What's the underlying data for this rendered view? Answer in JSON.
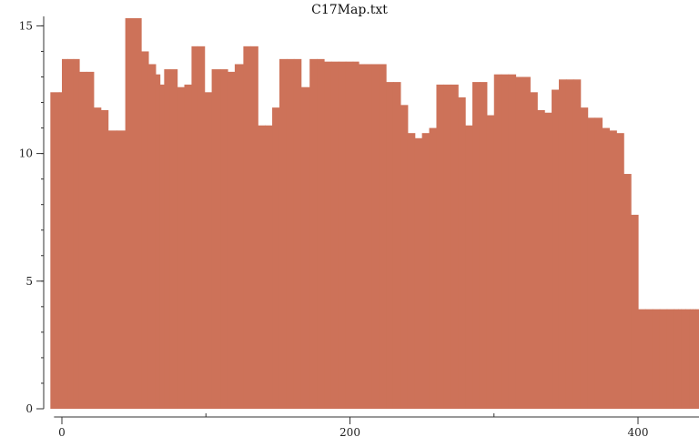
{
  "chart_data": {
    "type": "bar",
    "title": "C17Map.txt",
    "xlabel": "",
    "ylabel": "",
    "xlim": [
      -8,
      442
    ],
    "ylim": [
      0,
      15.3
    ],
    "x_ticks_major": [
      0,
      200,
      400
    ],
    "x_tick_labels": [
      "0",
      "200",
      "400"
    ],
    "x_ticks_minor": [
      100,
      300
    ],
    "y_ticks_major": [
      0,
      5,
      10,
      15
    ],
    "y_tick_labels": [
      "0",
      "5",
      "10",
      "15"
    ],
    "y_ticks_minor_step": 1,
    "grid": false,
    "legend": "none",
    "bar_color": "#cd7259",
    "series": [
      {
        "x": [
          -8,
          -2,
          0,
          4,
          8,
          12,
          17,
          22,
          27,
          32,
          38,
          44,
          50,
          55,
          60,
          65,
          68,
          71,
          75,
          80,
          85,
          90,
          94,
          99,
          104,
          110,
          115,
          120,
          126,
          131,
          136,
          141,
          146,
          151,
          156,
          161,
          166,
          172,
          177,
          182,
          187,
          192,
          197,
          202,
          206,
          210,
          215,
          220,
          225,
          230,
          235,
          240,
          245,
          250,
          255,
          260,
          265,
          270,
          275,
          280,
          285,
          290,
          295,
          300,
          305,
          310,
          315,
          320,
          325,
          330,
          335,
          340,
          345,
          350,
          355,
          360,
          365,
          370,
          375,
          380,
          385,
          390,
          395,
          400,
          405,
          410,
          415,
          420,
          425,
          428,
          430,
          433,
          436,
          438,
          440
        ],
        "widths": [
          6,
          2,
          4,
          4,
          4,
          5,
          5,
          5,
          5,
          6,
          6,
          6,
          5,
          5,
          5,
          3,
          3,
          4,
          5,
          5,
          5,
          4,
          5,
          5,
          6,
          5,
          5,
          6,
          5,
          5,
          5,
          5,
          5,
          5,
          5,
          5,
          6,
          5,
          5,
          5,
          5,
          5,
          5,
          4,
          4,
          5,
          5,
          5,
          5,
          5,
          5,
          5,
          5,
          5,
          5,
          5,
          5,
          5,
          5,
          5,
          5,
          5,
          5,
          5,
          5,
          5,
          5,
          5,
          5,
          5,
          5,
          5,
          5,
          5,
          5,
          5,
          5,
          5,
          5,
          5,
          5,
          5,
          5,
          5,
          5,
          5,
          5,
          5,
          3,
          2,
          3,
          3,
          2,
          2,
          2
        ],
        "values": [
          12.4,
          12.4,
          13.7,
          13.7,
          13.7,
          13.2,
          13.2,
          11.8,
          11.7,
          10.9,
          10.9,
          15.3,
          15.3,
          14.0,
          13.5,
          13.1,
          12.7,
          13.3,
          13.3,
          12.6,
          12.7,
          14.2,
          14.2,
          12.4,
          13.3,
          13.3,
          13.2,
          13.5,
          14.2,
          14.2,
          11.1,
          11.1,
          11.8,
          13.7,
          13.7,
          13.7,
          12.6,
          13.7,
          13.7,
          13.6,
          13.6,
          13.6,
          13.6,
          13.6,
          13.5,
          13.5,
          13.5,
          13.5,
          12.8,
          12.8,
          11.9,
          10.8,
          10.6,
          10.8,
          11.0,
          12.7,
          12.7,
          12.7,
          12.2,
          11.1,
          12.8,
          12.8,
          11.5,
          13.1,
          13.1,
          13.1,
          13.0,
          13.0,
          12.4,
          11.7,
          11.6,
          12.5,
          12.9,
          12.9,
          12.9,
          11.8,
          11.4,
          11.4,
          11.0,
          10.9,
          10.8,
          9.2,
          7.6,
          3.9,
          3.9,
          3.9,
          3.9,
          3.9,
          3.9,
          3.9,
          3.9,
          3.9,
          3.9,
          3.9,
          3.9
        ]
      }
    ]
  }
}
